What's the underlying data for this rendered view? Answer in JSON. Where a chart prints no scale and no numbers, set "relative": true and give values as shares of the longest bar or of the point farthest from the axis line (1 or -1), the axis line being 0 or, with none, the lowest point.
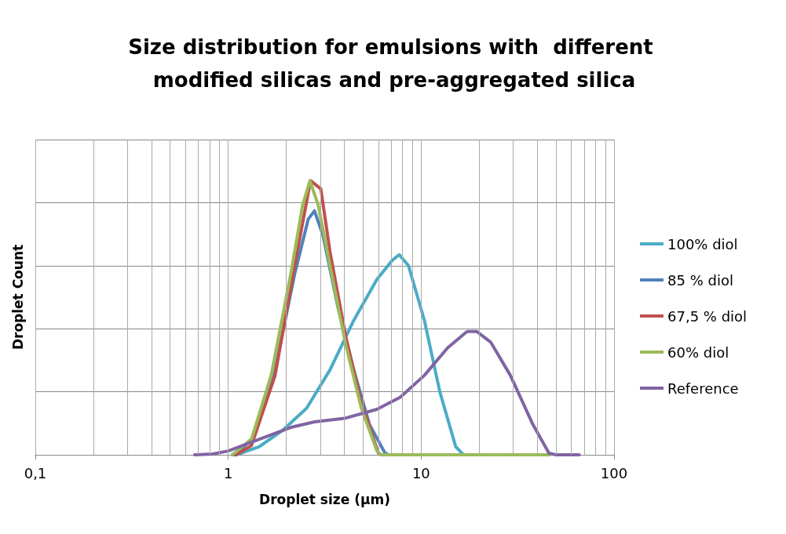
{
  "chart_data": {
    "type": "line",
    "title": "Size distribution for emulsions with  different modified silicas and pre-aggregated silica",
    "xlabel": "Droplet size (µm)",
    "ylabel": "Droplet Count",
    "relative": true,
    "log": "x",
    "grid": true,
    "legend": "right",
    "marker": "none",
    "line_style": "solid",
    "xlim": [
      0.1,
      100
    ],
    "xticks": [
      {
        "value": 0.1,
        "label": "0,1"
      },
      {
        "value": 0.2,
        "label": null
      },
      {
        "value": 0.3,
        "label": null
      },
      {
        "value": 0.4,
        "label": null
      },
      {
        "value": 0.5,
        "label": null
      },
      {
        "value": 0.6,
        "label": null
      },
      {
        "value": 0.7,
        "label": null
      },
      {
        "value": 0.8,
        "label": null
      },
      {
        "value": 0.9,
        "label": null
      },
      1,
      {
        "value": 2,
        "label": null
      },
      {
        "value": 3,
        "label": null
      },
      {
        "value": 4,
        "label": null
      },
      {
        "value": 5,
        "label": null
      },
      {
        "value": 6,
        "label": null
      },
      {
        "value": 7,
        "label": null
      },
      {
        "value": 8,
        "label": null
      },
      {
        "value": 9,
        "label": null
      },
      10,
      {
        "value": 20,
        "label": null
      },
      {
        "value": 30,
        "label": null
      },
      {
        "value": 40,
        "label": null
      },
      {
        "value": 50,
        "label": null
      },
      {
        "value": 60,
        "label": null
      },
      {
        "value": 70,
        "label": null
      },
      {
        "value": 80,
        "label": null
      },
      {
        "value": 90,
        "label": null
      },
      100
    ],
    "series": [
      {
        "name": "100% diol",
        "color": "#4bacc6",
        "x": [
          1.1,
          1.45,
          1.92,
          2.55,
          3.37,
          4.47,
          5.9,
          7.1,
          7.7,
          8.6,
          10.4,
          12.5,
          15.1,
          16.6,
          46
        ],
        "values": [
          0,
          0.03,
          0.09,
          0.17,
          0.31,
          0.49,
          0.64,
          0.71,
          0.73,
          0.69,
          0.49,
          0.23,
          0.03,
          0,
          0
        ]
      },
      {
        "name": "85 % diol",
        "color": "#4f81bd",
        "x": [
          1.05,
          1.05,
          1.1,
          1.37,
          1.75,
          2.21,
          2.6,
          2.8,
          3.1,
          3.7,
          4.47,
          5.4,
          6.5,
          6.8,
          46
        ],
        "values": [
          0,
          0,
          0,
          0.07,
          0.31,
          0.66,
          0.86,
          0.89,
          0.8,
          0.54,
          0.31,
          0.11,
          0.006,
          0,
          0
        ]
      },
      {
        "name": "67,5 % diol",
        "color": "#c0504d",
        "x": [
          1.1,
          1.32,
          1.75,
          2.21,
          2.67,
          3.02,
          3.37,
          4.07,
          4.9,
          6.0,
          6.2,
          46
        ],
        "values": [
          0,
          0.034,
          0.29,
          0.69,
          1,
          0.97,
          0.74,
          0.43,
          0.19,
          0.006,
          0,
          0
        ]
      },
      {
        "name": "60% diol",
        "color": "#9bbb59",
        "x": [
          1.05,
          1.32,
          1.67,
          2.11,
          2.43,
          2.65,
          2.93,
          3.37,
          4.07,
          4.9,
          5.9,
          6.2,
          46
        ],
        "values": [
          0,
          0.057,
          0.29,
          0.66,
          0.91,
          1,
          0.91,
          0.69,
          0.4,
          0.17,
          0.014,
          0,
          0
        ]
      },
      {
        "name": "Reference",
        "color": "#8064a2",
        "x": [
          0.67,
          0.83,
          1,
          1.45,
          2.11,
          2.8,
          4.07,
          5.9,
          7.8,
          10.4,
          13.7,
          17.3,
          19.4,
          23,
          29,
          38,
          46,
          50,
          66
        ],
        "values": [
          0,
          0.003,
          0.014,
          0.057,
          0.1,
          0.12,
          0.134,
          0.166,
          0.21,
          0.29,
          0.39,
          0.45,
          0.45,
          0.41,
          0.29,
          0.11,
          0.006,
          0,
          0
        ]
      }
    ]
  }
}
